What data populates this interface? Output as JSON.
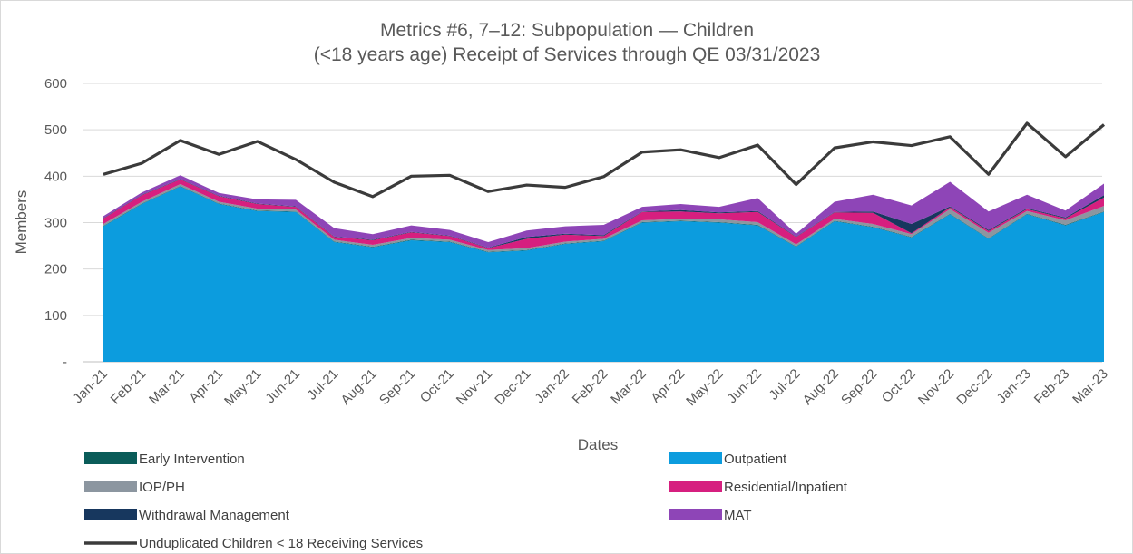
{
  "chart_data": {
    "type": "area",
    "title_lines": [
      "Metrics #6, 7–12: Subpopulation — Children",
      "(<18 years age) Receipt of Services through QE 03/31/2023"
    ],
    "xlabel": "Dates",
    "ylabel": "Members",
    "ylim": [
      0,
      600
    ],
    "yticks": [
      {
        "value": 0,
        "label": "-"
      },
      {
        "value": 100,
        "label": "100"
      },
      {
        "value": 200,
        "label": "200"
      },
      {
        "value": 300,
        "label": "300"
      },
      {
        "value": 400,
        "label": "400"
      },
      {
        "value": 500,
        "label": "500"
      },
      {
        "value": 600,
        "label": "600"
      }
    ],
    "grid": true,
    "stacked": true,
    "categories": [
      "Jan-21",
      "Feb-21",
      "Mar-21",
      "Apr-21",
      "May-21",
      "Jun-21",
      "Jul-21",
      "Aug-21",
      "Sep-21",
      "Oct-21",
      "Nov-21",
      "Dec-21",
      "Jan-22",
      "Feb-22",
      "Mar-22",
      "Apr-22",
      "May-22",
      "Jun-22",
      "Jul-22",
      "Aug-22",
      "Sep-22",
      "Oct-22",
      "Nov-22",
      "Dec-22",
      "Jan-23",
      "Feb-23",
      "Mar-23"
    ],
    "series": [
      {
        "name": "Outpatient",
        "color": "#0C9CDE",
        "values": [
          292,
          340,
          378,
          340,
          325,
          323,
          258,
          247,
          262,
          258,
          236,
          240,
          254,
          260,
          300,
          303,
          300,
          294,
          248,
          303,
          290,
          268,
          318,
          265,
          318,
          294,
          323
        ]
      },
      {
        "name": "Early Intervention",
        "color": "#0A5C59",
        "values": [
          1,
          1,
          1,
          1,
          1,
          1,
          1,
          1,
          1,
          1,
          1,
          1,
          1,
          1,
          1,
          1,
          1,
          1,
          1,
          1,
          1,
          1,
          1,
          1,
          1,
          1,
          1
        ]
      },
      {
        "name": "IOP/PH",
        "color": "#8C96A0",
        "values": [
          4,
          4,
          4,
          4,
          4,
          4,
          4,
          4,
          4,
          4,
          4,
          4,
          4,
          4,
          4,
          4,
          6,
          6,
          4,
          4,
          6,
          6,
          10,
          12,
          6,
          10,
          12
        ]
      },
      {
        "name": "Residential/Inpatient",
        "color": "#D61F7F",
        "values": [
          12,
          14,
          10,
          12,
          10,
          6,
          6,
          10,
          12,
          8,
          4,
          20,
          15,
          6,
          18,
          16,
          13,
          22,
          16,
          14,
          24,
          2,
          4,
          4,
          4,
          4,
          18
        ]
      },
      {
        "name": "Withdrawal Management",
        "color": "#17375E",
        "values": [
          1,
          1,
          1,
          1,
          1,
          1,
          1,
          1,
          1,
          1,
          1,
          4,
          2,
          2,
          1,
          3,
          2,
          2,
          1,
          1,
          3,
          20,
          2,
          2,
          2,
          2,
          5
        ]
      },
      {
        "name": "MAT",
        "color": "#8E45B7",
        "values": [
          4,
          5,
          8,
          6,
          9,
          14,
          18,
          12,
          14,
          12,
          12,
          14,
          16,
          22,
          10,
          13,
          12,
          28,
          6,
          22,
          36,
          40,
          53,
          40,
          29,
          15,
          25
        ]
      }
    ],
    "line_series": {
      "name": "Unduplicated Children < 18 Receiving Services",
      "color": "#3B3B3B",
      "values": [
        404,
        428,
        477,
        447,
        475,
        436,
        387,
        356,
        400,
        402,
        367,
        381,
        376,
        399,
        452,
        457,
        440,
        467,
        382,
        461,
        474,
        466,
        485,
        404,
        514,
        442,
        511
      ]
    },
    "legend": {
      "placement": "bottom",
      "entries": [
        {
          "label": "Early Intervention",
          "color": "#0A5C59",
          "kind": "box"
        },
        {
          "label": "Outpatient",
          "color": "#0C9CDE",
          "kind": "box"
        },
        {
          "label": "IOP/PH",
          "color": "#8C96A0",
          "kind": "box"
        },
        {
          "label": "Residential/Inpatient",
          "color": "#D61F7F",
          "kind": "box"
        },
        {
          "label": "Withdrawal Management",
          "color": "#17375E",
          "kind": "box"
        },
        {
          "label": "MAT",
          "color": "#8E45B7",
          "kind": "box"
        },
        {
          "label": "Unduplicated Children < 18 Receiving Services",
          "color": "#3B3B3B",
          "kind": "line"
        }
      ]
    }
  }
}
